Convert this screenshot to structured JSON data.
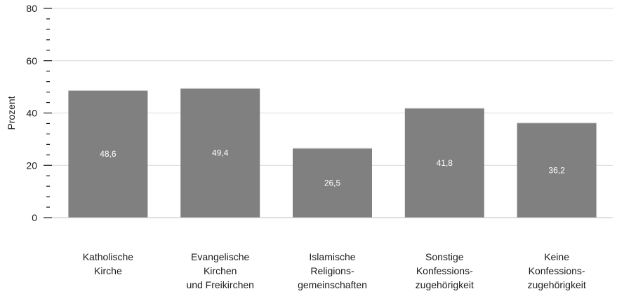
{
  "chart_data": {
    "type": "bar",
    "categories": [
      [
        "Katholische",
        "Kirche"
      ],
      [
        "Evangelische",
        "Kirchen",
        "und Freikirchen"
      ],
      [
        "Islamische",
        "Religions-",
        "gemeinschaften"
      ],
      [
        "Sonstige",
        "Konfessions-",
        "zugehörigkeit"
      ],
      [
        "Keine",
        "Konfessions-",
        "zugehörigkeit"
      ]
    ],
    "values": [
      48.6,
      49.4,
      26.5,
      41.8,
      36.2
    ],
    "data_labels": [
      "48,6",
      "49,4",
      "26,5",
      "41,8",
      "36,2"
    ],
    "ylabel": "Prozent",
    "ylim": [
      0,
      80
    ],
    "yticks": [
      0,
      20,
      40,
      60,
      80
    ],
    "grid": true,
    "bar_color": "#808080",
    "grid_color": "#d9d9d9"
  }
}
